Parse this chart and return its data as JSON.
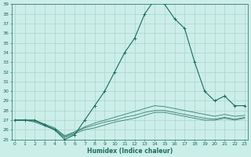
{
  "xlabel": "Humidex (Indice chaleur)",
  "bg_color": "#cceee8",
  "grid_color": "#aad4ce",
  "line_color": "#1a6b5e",
  "x_hours": [
    0,
    1,
    2,
    3,
    4,
    5,
    6,
    7,
    8,
    9,
    10,
    11,
    12,
    13,
    14,
    15,
    16,
    17,
    18,
    19,
    20,
    21,
    22,
    23
  ],
  "y_main": [
    27,
    27,
    27,
    26.5,
    26,
    25,
    25.5,
    27,
    28.5,
    30,
    32,
    34,
    35.5,
    38,
    39.5,
    39,
    37.5,
    36.5,
    33,
    30,
    29,
    29.5,
    28.5,
    28.5
  ],
  "y_line2": [
    27,
    27,
    26.8,
    26.4,
    26,
    25.2,
    25.6,
    26,
    26.2,
    26.5,
    26.8,
    27,
    27.2,
    27.5,
    27.8,
    27.8,
    27.6,
    27.4,
    27.2,
    27,
    27,
    27.2,
    27,
    27.2
  ],
  "y_line3": [
    27,
    27,
    26.9,
    26.5,
    26.1,
    25.3,
    25.7,
    26.2,
    26.5,
    26.8,
    27,
    27.3,
    27.5,
    27.8,
    28,
    28,
    27.8,
    27.6,
    27.4,
    27.2,
    27.1,
    27.3,
    27.1,
    27.3
  ],
  "y_line4": [
    27,
    27,
    27,
    26.6,
    26.2,
    25.4,
    25.8,
    26.3,
    26.7,
    27,
    27.3,
    27.6,
    27.9,
    28.2,
    28.5,
    28.4,
    28.2,
    28,
    27.8,
    27.6,
    27.4,
    27.6,
    27.4,
    27.5
  ],
  "ylim": [
    25,
    39
  ],
  "yticks": [
    25,
    26,
    27,
    28,
    29,
    30,
    31,
    32,
    33,
    34,
    35,
    36,
    37,
    38,
    39
  ],
  "xticks": [
    0,
    1,
    2,
    3,
    4,
    5,
    6,
    7,
    8,
    9,
    10,
    11,
    12,
    13,
    14,
    15,
    16,
    17,
    18,
    19,
    20,
    21,
    22,
    23
  ]
}
